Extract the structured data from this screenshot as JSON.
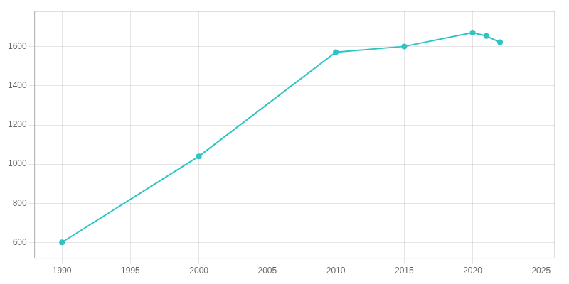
{
  "chart_data": {
    "type": "line",
    "x": [
      1990,
      2000,
      2010,
      2015,
      2020,
      2021,
      2022
    ],
    "values": [
      601,
      1040,
      1572,
      1601,
      1671,
      1654,
      1622
    ],
    "color": "#2EC4C4",
    "marker": "circle",
    "xlim": [
      1988,
      2026
    ],
    "ylim": [
      520,
      1780
    ],
    "xticks": [
      1990,
      1995,
      2000,
      2005,
      2010,
      2015,
      2020,
      2025
    ],
    "yticks": [
      600,
      800,
      1000,
      1200,
      1400,
      1600
    ],
    "grid": true
  }
}
